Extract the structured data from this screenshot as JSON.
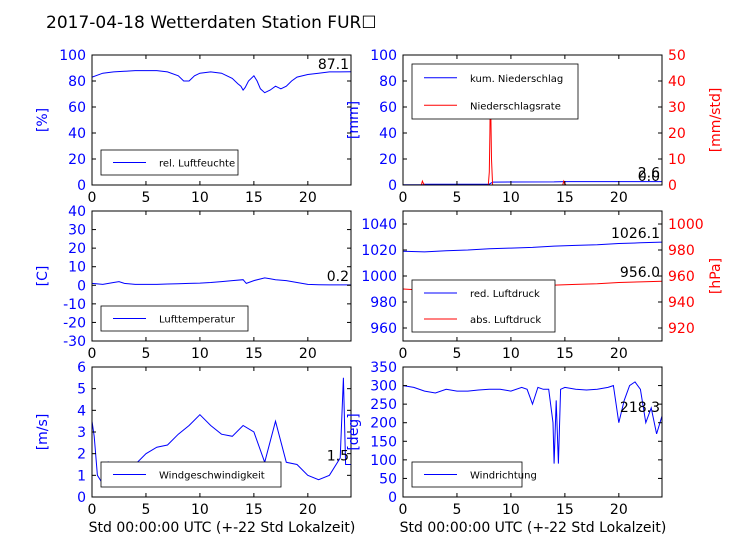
{
  "title": "2017-04-18 Wetterdaten Station FUR☐",
  "colors": {
    "blue": "#0000ff",
    "red": "#ff0000",
    "black": "#000000"
  },
  "xlabel_bottom": "Std 00:00:00 UTC (+-22 Std Lokalzeit)",
  "chart_data": [
    {
      "type": "line",
      "ylabel": "[%]",
      "xlim": [
        0,
        24
      ],
      "ylim": [
        0,
        100
      ],
      "xticks": [
        0,
        5,
        10,
        15,
        20
      ],
      "yticks": [
        0,
        20,
        40,
        60,
        80,
        100
      ],
      "legend": {
        "placement": "lower-left",
        "entries": [
          "rel. Luftfeuchte"
        ]
      },
      "annotation": "87.1",
      "series": [
        {
          "name": "rel. Luftfeuchte",
          "color": "#0000ff",
          "x": [
            0,
            1,
            2,
            3,
            4,
            5,
            6,
            7,
            8,
            8.5,
            9,
            9.5,
            10,
            11,
            12,
            12.5,
            13,
            13.5,
            13.8,
            14,
            14.2,
            14.5,
            15,
            15.3,
            15.6,
            16,
            16.5,
            17,
            17.5,
            18,
            18.5,
            19,
            20,
            21,
            22,
            23,
            24
          ],
          "y": [
            83,
            86,
            87,
            87.5,
            88,
            88,
            88,
            87,
            84,
            80,
            80,
            84,
            86,
            87,
            86,
            84,
            82,
            78,
            76,
            73,
            75,
            80,
            84,
            80,
            74,
            71,
            73,
            76,
            74,
            76,
            80,
            83,
            85,
            86,
            87,
            87,
            87.1
          ]
        }
      ]
    },
    {
      "type": "line",
      "ylabel": "[mm]",
      "ylabel_right": "[mm/std]",
      "xlim": [
        0,
        24
      ],
      "ylim": [
        0,
        100
      ],
      "ylim_right": [
        0,
        50
      ],
      "xticks": [
        0,
        5,
        10,
        15,
        20
      ],
      "yticks": [
        0,
        20,
        40,
        60,
        80,
        100
      ],
      "yticks_right": [
        0,
        10,
        20,
        30,
        40,
        50
      ],
      "legend": {
        "placement": "upper-left",
        "entries": [
          "kum. Niederschlag",
          "Niederschlagsrate"
        ]
      },
      "annotation": "2.6",
      "annotation_right": "0.0",
      "series": [
        {
          "name": "kum. Niederschlag",
          "axis": "left",
          "color": "#0000ff",
          "x": [
            0,
            1.8,
            2.0,
            8.0,
            8.3,
            14,
            15,
            24
          ],
          "y": [
            0.2,
            0.2,
            0.5,
            0.6,
            2.2,
            2.4,
            2.6,
            2.6
          ]
        },
        {
          "name": "Niederschlagsrate",
          "axis": "right",
          "color": "#ff0000",
          "x": [
            0,
            1.7,
            1.8,
            1.9,
            2.0,
            7.9,
            8.0,
            8.05,
            8.1,
            8.2,
            8.3,
            14.8,
            14.9,
            15.0,
            15.1,
            24
          ],
          "y": [
            0,
            0,
            1.5,
            0.5,
            0,
            0,
            5,
            20,
            39,
            10,
            0,
            0,
            1.5,
            0.5,
            0,
            0
          ]
        }
      ]
    },
    {
      "type": "line",
      "ylabel": "[C]",
      "xlim": [
        0,
        24
      ],
      "ylim": [
        -30,
        40
      ],
      "xticks": [
        0,
        5,
        10,
        15,
        20
      ],
      "yticks": [
        -30,
        -20,
        -10,
        0,
        10,
        20,
        30,
        40
      ],
      "legend": {
        "placement": "lower-left",
        "entries": [
          "Lufttemperatur"
        ]
      },
      "annotation": "0.2",
      "series": [
        {
          "name": "Lufttemperatur",
          "color": "#0000ff",
          "x": [
            0,
            1,
            2,
            2.5,
            3,
            4,
            5,
            6,
            7,
            8,
            9,
            10,
            11,
            12,
            13,
            14,
            14.3,
            15,
            16,
            16.5,
            17,
            18,
            19,
            20,
            21,
            22,
            23,
            24
          ],
          "y": [
            1,
            0.5,
            1.5,
            2,
            1,
            0.5,
            0.5,
            0.5,
            0.7,
            0.8,
            1,
            1.2,
            1.5,
            2,
            2.5,
            3,
            1,
            2.5,
            4,
            3.5,
            3,
            2.5,
            1.5,
            0.5,
            0.3,
            0.2,
            0.2,
            0.2
          ]
        }
      ]
    },
    {
      "type": "line",
      "ylabel": "",
      "ylabel_right": "[hPa]",
      "xlim": [
        0,
        24
      ],
      "ylim": [
        950,
        1050
      ],
      "ylim_right": [
        910,
        1010
      ],
      "xticks": [
        0,
        5,
        10,
        15,
        20
      ],
      "yticks": [
        960,
        980,
        1000,
        1020,
        1040
      ],
      "yticks_right": [
        920,
        940,
        960,
        980,
        1000
      ],
      "legend": {
        "placement": "lower-left",
        "entries": [
          "red. Luftdruck",
          "abs. Luftdruck"
        ]
      },
      "annotation": "1026.1",
      "annotation_right": "956.0",
      "series": [
        {
          "name": "red. Luftdruck",
          "axis": "left",
          "color": "#0000ff",
          "x": [
            0,
            2,
            4,
            6,
            8,
            10,
            12,
            14,
            16,
            18,
            20,
            22,
            24
          ],
          "y": [
            1019,
            1018.5,
            1019.5,
            1020,
            1021,
            1021.5,
            1022,
            1023,
            1023.5,
            1024,
            1025,
            1025.5,
            1026.1
          ]
        },
        {
          "name": "abs. Luftdruck",
          "axis": "right",
          "color": "#ff0000",
          "x": [
            0,
            2,
            4,
            6,
            8,
            10,
            12,
            14,
            16,
            18,
            20,
            22,
            24
          ],
          "y": [
            950,
            949,
            949.5,
            950,
            951,
            951.5,
            952,
            953,
            953.5,
            954,
            955,
            955.5,
            956.0
          ]
        }
      ]
    },
    {
      "type": "line",
      "ylabel": "[m/s]",
      "xlim": [
        0,
        24
      ],
      "ylim": [
        0,
        6
      ],
      "xticks": [
        0,
        5,
        10,
        15,
        20
      ],
      "yticks": [
        0,
        1,
        2,
        3,
        4,
        5,
        6
      ],
      "legend": {
        "placement": "lower-center",
        "entries": [
          "Windgeschwindigkeit"
        ]
      },
      "annotation": "1.5",
      "series": [
        {
          "name": "Windgeschwindigkeit",
          "color": "#0000ff",
          "x": [
            0,
            0.2,
            0.5,
            1,
            1.5,
            2,
            3,
            4,
            5,
            6,
            7,
            8,
            9,
            10,
            11,
            12,
            13,
            14,
            15,
            16,
            17,
            18,
            19,
            20,
            21,
            22,
            23,
            23.3,
            23.5,
            24
          ],
          "y": [
            3.5,
            2.8,
            1.0,
            0.6,
            1.6,
            1.2,
            1.4,
            1.5,
            2.0,
            2.3,
            2.4,
            2.9,
            3.3,
            3.8,
            3.3,
            2.9,
            2.8,
            3.3,
            3.0,
            1.6,
            3.5,
            1.6,
            1.5,
            1.0,
            0.8,
            1.0,
            1.8,
            5.5,
            1.5,
            1.5
          ]
        }
      ]
    },
    {
      "type": "line",
      "ylabel": "[deg]",
      "xlim": [
        0,
        24
      ],
      "ylim": [
        0,
        350
      ],
      "xticks": [
        0,
        5,
        10,
        15,
        20
      ],
      "yticks": [
        0,
        50,
        100,
        150,
        200,
        250,
        300,
        350
      ],
      "legend": {
        "placement": "lower-left",
        "entries": [
          "Windrichtung"
        ]
      },
      "annotation": "218.3",
      "series": [
        {
          "name": "Windrichtung",
          "color": "#0000ff",
          "x": [
            0,
            1,
            2,
            3,
            4,
            5,
            6,
            7,
            8,
            9,
            10,
            11,
            11.5,
            12,
            12.5,
            13,
            13.5,
            13.9,
            14,
            14.2,
            14.4,
            14.6,
            15,
            16,
            17,
            18,
            19,
            19.5,
            20,
            20.5,
            21,
            21.5,
            22,
            22.5,
            23,
            23.5,
            24
          ],
          "y": [
            300,
            295,
            285,
            280,
            290,
            285,
            285,
            288,
            290,
            290,
            285,
            295,
            290,
            250,
            295,
            290,
            290,
            200,
            90,
            260,
            90,
            290,
            295,
            290,
            288,
            290,
            295,
            300,
            200,
            260,
            300,
            310,
            290,
            200,
            240,
            170,
            218
          ]
        }
      ]
    }
  ]
}
